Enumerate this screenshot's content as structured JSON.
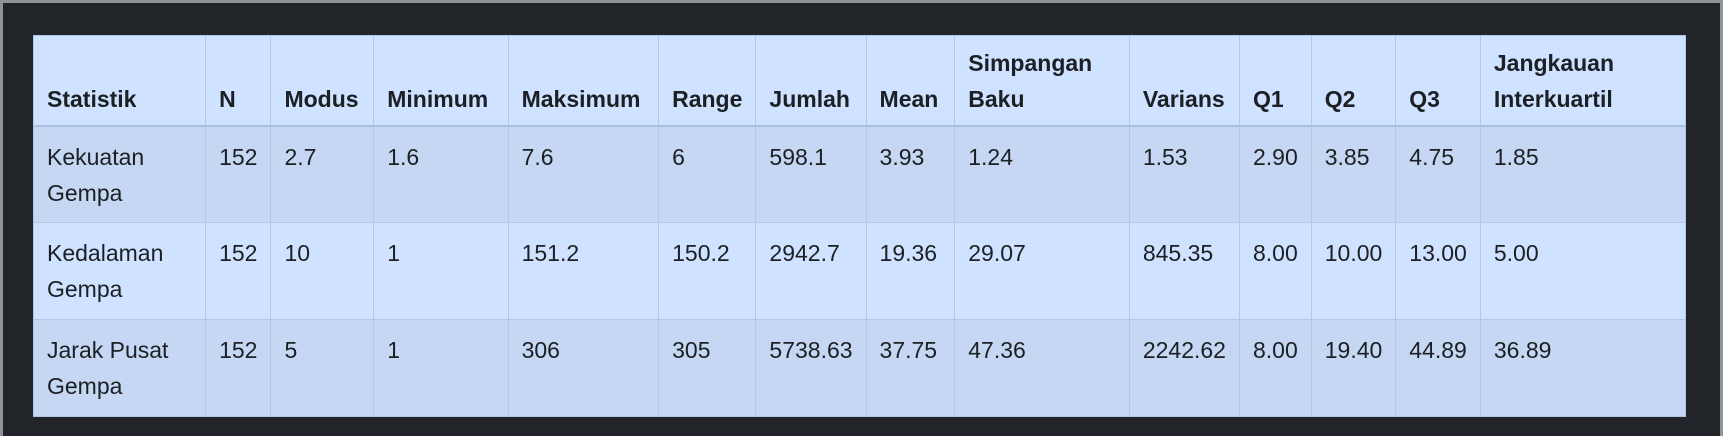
{
  "table": {
    "headers": [
      "Statistik",
      "N",
      "Modus",
      "Minimum",
      "Maksimum",
      "Range",
      "Jumlah",
      "Mean",
      "Simpangan Baku",
      "Varians",
      "Q1",
      "Q2",
      "Q3",
      "Jangkauan Interkuartil"
    ],
    "rows": [
      [
        "Kekuatan Gempa",
        "152",
        "2.7",
        "1.6",
        "7.6",
        "6",
        "598.1",
        "3.93",
        "1.24",
        "1.53",
        "2.90",
        "3.85",
        "4.75",
        "1.85"
      ],
      [
        "Kedalaman Gempa",
        "152",
        "10",
        "1",
        "151.2",
        "150.2",
        "2942.7",
        "19.36",
        "29.07",
        "845.35",
        "8.00",
        "10.00",
        "13.00",
        "5.00"
      ],
      [
        "Jarak Pusat Gempa",
        "152",
        "5",
        "1",
        "306",
        "305",
        "5738.63",
        "37.75",
        "47.36",
        "2242.62",
        "8.00",
        "19.40",
        "44.89",
        "36.89"
      ]
    ]
  }
}
